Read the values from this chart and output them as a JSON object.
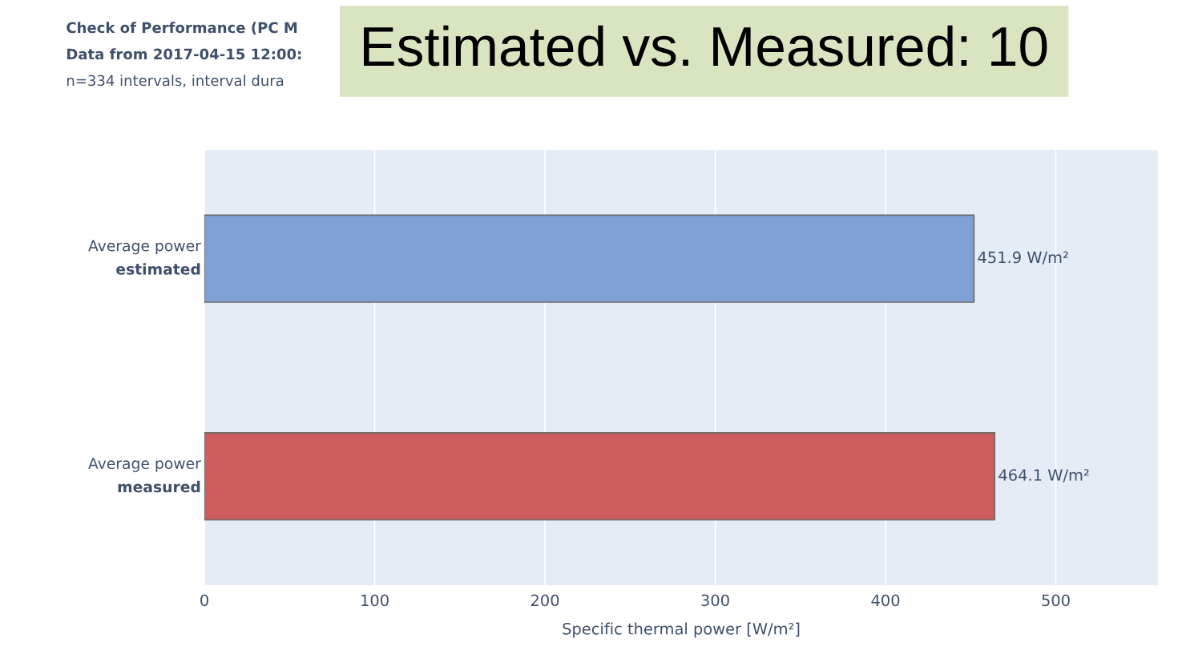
{
  "chart_data": {
    "type": "bar",
    "orientation": "horizontal",
    "title": "Estimated vs. Measured: 10",
    "annotations": [
      "Check of Performance (PC M",
      "Data from 2017-04-15 12:00:",
      "n=334 intervals, interval dura"
    ],
    "categories": [
      "Average power\nestimated",
      "Average power\nmeasured"
    ],
    "values": [
      451.9,
      464.1
    ],
    "colors": [
      "#7fa1d6",
      "#cd5c5f"
    ],
    "value_labels": [
      "451.9 W/m²",
      "464.1 W/m²"
    ],
    "xlabel": "Specific thermal power [W/m²]",
    "xlim": [
      0,
      560
    ],
    "xticks": [
      0,
      100,
      200,
      300,
      400,
      500
    ],
    "grid": "x"
  }
}
